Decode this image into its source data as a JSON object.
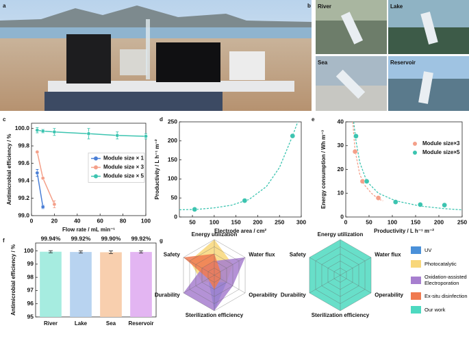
{
  "panel_labels": [
    "a",
    "b",
    "c",
    "d",
    "e",
    "f",
    "g"
  ],
  "photo_labels": [
    "River",
    "Lake",
    "Sea",
    "Reservoir"
  ],
  "chart_data": [
    {
      "type": "line",
      "xlabel": "Flow rate / mL min⁻¹",
      "ylabel": "Antimicrobial efficiency / %",
      "xlim": [
        0,
        100
      ],
      "xticks": [
        0,
        20,
        40,
        60,
        80,
        100
      ],
      "ylim": [
        99,
        100.06
      ],
      "yticks": [
        {
          "value": 99,
          "label": "99.0"
        },
        99.2,
        99.4,
        99.6,
        99.8,
        {
          "value": 100,
          "label": "100.0"
        }
      ],
      "legend": "right",
      "series": [
        {
          "name": "Module size × 1",
          "color": "#4a7fd6",
          "x": [
            5,
            10
          ],
          "values": [
            99.49,
            99.1
          ],
          "errors": [
            0.04,
            0.02
          ]
        },
        {
          "name": "Module size × 3",
          "color": "#f4a08a",
          "x": [
            5,
            10,
            20
          ],
          "values": [
            99.73,
            99.43,
            99.13
          ],
          "errors": [
            0.01,
            0.01,
            0.04
          ]
        },
        {
          "name": "Module size × 5",
          "color": "#3cc4b0",
          "x": [
            5,
            10,
            20,
            50,
            75,
            100
          ],
          "values": [
            99.98,
            99.97,
            99.96,
            99.94,
            99.92,
            99.91
          ],
          "errors": [
            0.03,
            0.02,
            0.04,
            0.06,
            0.04,
            0.03
          ]
        }
      ]
    },
    {
      "type": "scatter",
      "xlabel": "Electrode area / cm²",
      "ylabel": "Productivity / L h⁻¹ m⁻²",
      "xlim": [
        20,
        300
      ],
      "xticks": [
        50,
        100,
        150,
        200,
        250,
        300
      ],
      "ylim": [
        0,
        250
      ],
      "yticks": [
        0,
        50,
        100,
        150,
        200,
        250
      ],
      "series": [
        {
          "color": "#3cc4b0",
          "x": [
            55,
            170,
            280
          ],
          "values": [
            20,
            43,
            213
          ]
        }
      ],
      "fits": [
        {
          "color": "#3cc4b0",
          "x": [
            20,
            60,
            100,
            140,
            180,
            220,
            250,
            280,
            292
          ],
          "values": [
            19,
            20,
            24,
            31,
            46,
            80,
            130,
            213,
            250
          ]
        }
      ]
    },
    {
      "type": "scatter",
      "xlabel": "Productivity / L h⁻¹ m⁻²",
      "ylabel": "Energy consumption / Wh m⁻³",
      "xlim": [
        0,
        250
      ],
      "xticks": [
        0,
        50,
        100,
        150,
        200,
        250
      ],
      "ylim": [
        0,
        40
      ],
      "yticks": [
        0,
        10,
        20,
        30,
        40
      ],
      "legend": "upper right",
      "series": [
        {
          "name": "Module size×3",
          "color": "#f4a08a",
          "x": [
            20,
            36,
            70
          ],
          "values": [
            27.5,
            15,
            8
          ]
        },
        {
          "name": "Module size×5",
          "color": "#3cc4b0",
          "x": [
            22,
            45,
            107,
            160,
            212
          ],
          "values": [
            34,
            15,
            6.3,
            5.2,
            5
          ]
        }
      ],
      "fits": [
        {
          "color": "#f4a08a",
          "x": [
            15,
            20,
            30,
            40,
            55,
            70,
            80
          ],
          "values": [
            40,
            28,
            18,
            13.5,
            10,
            7.6,
            6.8
          ]
        },
        {
          "color": "#3cc4b0",
          "x": [
            17,
            22,
            30,
            45,
            70,
            107,
            160,
            212,
            250
          ],
          "values": [
            40,
            32,
            23,
            15,
            10,
            6.8,
            4.6,
            3.5,
            3
          ]
        }
      ]
    },
    {
      "type": "bar",
      "ylabel": "Antimicrobial efficiency / %",
      "categories": [
        "River",
        "Lake",
        "Sea",
        "Reservoir"
      ],
      "values": [
        99.94,
        99.92,
        99.9,
        99.92
      ],
      "value_labels": [
        "99.94%",
        "99.92%",
        "99.90%",
        "99.92%"
      ],
      "errors": [
        0.08,
        0.08,
        0.1,
        0.08
      ],
      "colors": [
        "#a6ece0",
        "#b8d3f0",
        "#f8cfae",
        "#e3b5f2"
      ],
      "ylim": [
        95,
        100.6
      ],
      "yticks": [
        95,
        96,
        97,
        98,
        99,
        100
      ]
    },
    {
      "type": "radar",
      "axes": [
        "Energy utilization",
        "Water flux",
        "Operability",
        "Sterilization efficiency",
        "Durability",
        "Safety"
      ],
      "rlim": [
        0,
        5
      ],
      "rticks": [
        1,
        2,
        3,
        4,
        5
      ],
      "series": [
        {
          "name": "UV",
          "color": "#4a90d9",
          "values": [
            2,
            1,
            2,
            5,
            1,
            1
          ]
        },
        {
          "name": "Photocatalytic",
          "color": "#f8d77a",
          "values": [
            5,
            3,
            2,
            1,
            2,
            4
          ]
        },
        {
          "name": "Oxidation-assisted Electroporation",
          "color": "#a77fcf",
          "values": [
            2,
            5,
            3,
            5,
            5,
            2
          ]
        },
        {
          "name": "Ex-situ disinfection",
          "color": "#f07a50",
          "values": [
            3,
            1,
            1,
            2,
            1,
            5
          ]
        }
      ]
    },
    {
      "type": "radar",
      "axes": [
        "Energy utilization",
        "Water flux",
        "Operability",
        "Sterilization efficiency",
        "Durability",
        "Safety"
      ],
      "rlim": [
        0,
        5
      ],
      "rticks": [
        1,
        2,
        3,
        4,
        5
      ],
      "series": [
        {
          "name": "Our work",
          "color": "#4dd9c0",
          "values": [
            5,
            5,
            5,
            5,
            5,
            5
          ]
        }
      ]
    }
  ]
}
